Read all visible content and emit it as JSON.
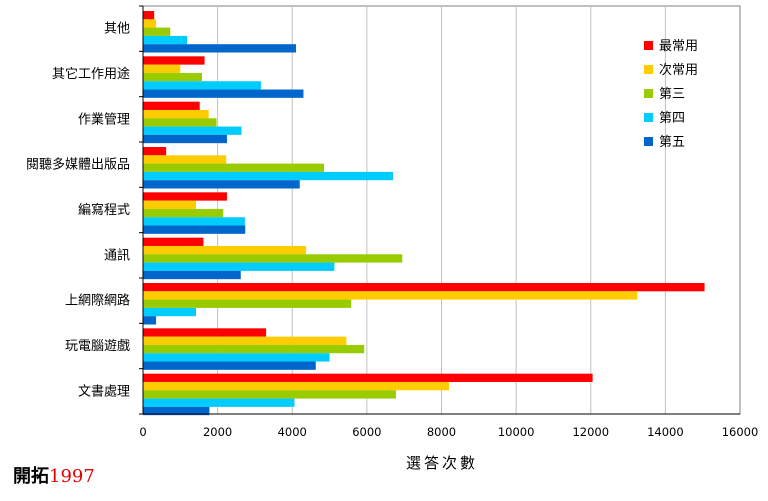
{
  "chart_data": {
    "type": "bar",
    "orientation": "horizontal",
    "categories": [
      "其他",
      "其它工作用途",
      "作業管理",
      "閱聽多媒體出版品",
      "編寫程式",
      "通訊",
      "上網際網路",
      "玩電腦遊戲",
      "文書處理"
    ],
    "series": [
      {
        "name": "最常用",
        "color": "#ff0000",
        "values": [
          300,
          1650,
          1520,
          620,
          2250,
          1620,
          15050,
          3300,
          12050
        ]
      },
      {
        "name": "次常用",
        "color": "#ffcc00",
        "values": [
          350,
          1000,
          1760,
          2230,
          1420,
          4370,
          13250,
          5450,
          8200
        ]
      },
      {
        "name": "第三",
        "color": "#99cc00",
        "values": [
          730,
          1580,
          1970,
          4850,
          2150,
          6950,
          5580,
          5930,
          6780
        ]
      },
      {
        "name": "第四",
        "color": "#00ccff",
        "values": [
          1180,
          3160,
          2640,
          6700,
          2730,
          5130,
          1420,
          5000,
          4060
        ]
      },
      {
        "name": "第五",
        "color": "#0066cc",
        "values": [
          4100,
          4300,
          2250,
          4200,
          2740,
          2620,
          350,
          4630,
          1780
        ]
      }
    ],
    "xlim": [
      0,
      16000
    ],
    "xticks": [
      "0",
      "2000",
      "4000",
      "6000",
      "8000",
      "10000",
      "12000",
      "14000",
      "16000"
    ],
    "xlabel": "選答次數",
    "ylabel": "",
    "title": "",
    "grid": "vertical",
    "legend": "top-right"
  },
  "credit": {
    "name": "開拓",
    "year": "1997"
  }
}
